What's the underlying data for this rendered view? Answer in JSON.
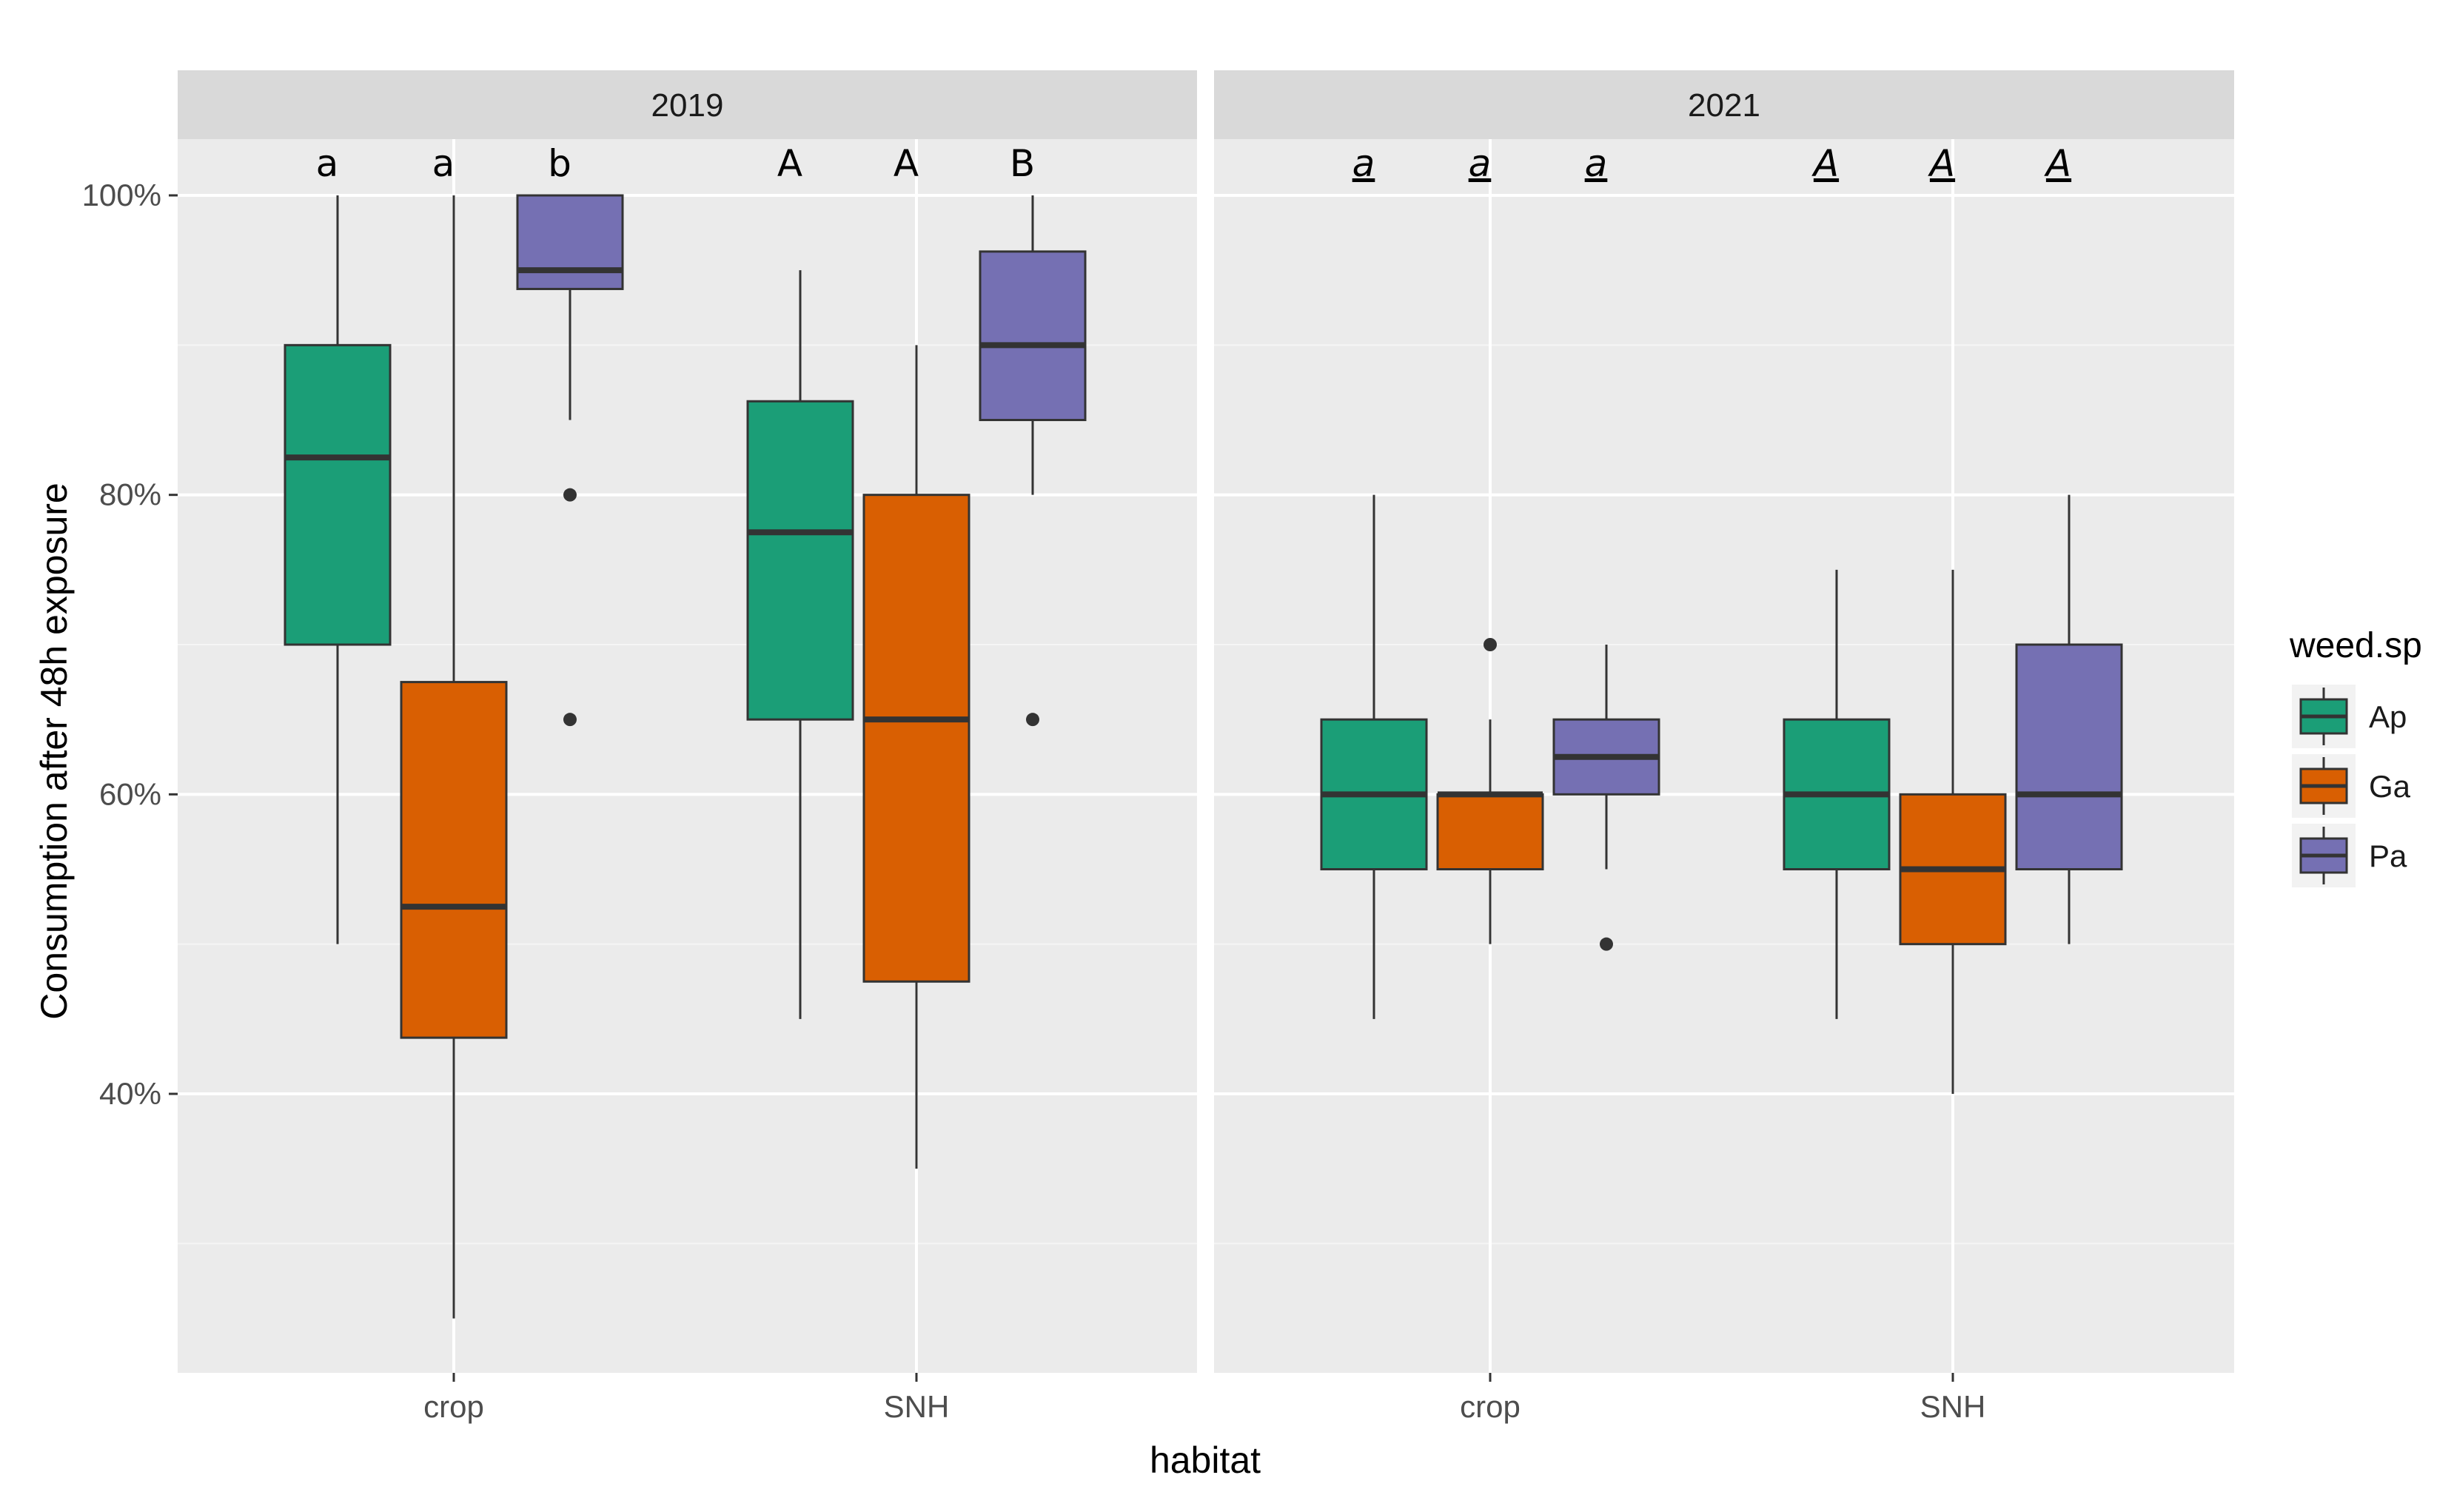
{
  "chart_data": {
    "type": "boxplot",
    "xlabel": "habitat",
    "ylabel": "Consumption after 48h exposure",
    "ylim": [
      0.23,
      1.04
    ],
    "y_ticks": [
      {
        "value": 0.4,
        "label": "40%"
      },
      {
        "value": 0.6,
        "label": "60%"
      },
      {
        "value": 0.8,
        "label": "80%"
      },
      {
        "value": 1.0,
        "label": "100%"
      }
    ],
    "y_minor_gridlines": [
      0.3,
      0.5,
      0.7,
      0.9
    ],
    "categories": [
      "crop",
      "SNH"
    ],
    "legend": {
      "title": "weed.sp",
      "position": "right",
      "entries": [
        {
          "name": "Ap",
          "color": "#1b9e77"
        },
        {
          "name": "Ga",
          "color": "#d95f02"
        },
        {
          "name": "Pa",
          "color": "#7570b3"
        }
      ]
    },
    "panels": [
      {
        "title": "2019",
        "letter_style": "plain",
        "groups": [
          {
            "habitat": "crop",
            "boxes": [
              {
                "series": "Ap",
                "min": 0.5,
                "q1": 0.7,
                "median": 0.825,
                "q3": 0.9,
                "max": 1.0,
                "outliers": [],
                "letter": "a"
              },
              {
                "series": "Ga",
                "min": 0.25,
                "q1": 0.4375,
                "median": 0.525,
                "q3": 0.675,
                "max": 1.0,
                "outliers": [],
                "letter": "a"
              },
              {
                "series": "Pa",
                "min": 0.85,
                "q1": 0.9375,
                "median": 0.95,
                "q3": 1.0,
                "max": 1.0,
                "outliers": [
                  0.8,
                  0.65
                ],
                "letter": "b"
              }
            ]
          },
          {
            "habitat": "SNH",
            "boxes": [
              {
                "series": "Ap",
                "min": 0.45,
                "q1": 0.65,
                "median": 0.775,
                "q3": 0.8625,
                "max": 0.95,
                "outliers": [],
                "letter": "A"
              },
              {
                "series": "Ga",
                "min": 0.35,
                "q1": 0.475,
                "median": 0.65,
                "q3": 0.8,
                "max": 0.9,
                "outliers": [],
                "letter": "A"
              },
              {
                "series": "Pa",
                "min": 0.8,
                "q1": 0.85,
                "median": 0.9,
                "q3": 0.9625,
                "max": 1.0,
                "outliers": [
                  0.65
                ],
                "letter": "B"
              }
            ]
          }
        ]
      },
      {
        "title": "2021",
        "letter_style": "italic-underlined",
        "groups": [
          {
            "habitat": "crop",
            "boxes": [
              {
                "series": "Ap",
                "min": 0.45,
                "q1": 0.55,
                "median": 0.6,
                "q3": 0.65,
                "max": 0.8,
                "outliers": [],
                "letter": "a"
              },
              {
                "series": "Ga",
                "min": 0.5,
                "q1": 0.55,
                "median": 0.6,
                "q3": 0.6,
                "max": 0.65,
                "outliers": [
                  0.7
                ],
                "letter": "a"
              },
              {
                "series": "Pa",
                "min": 0.55,
                "q1": 0.6,
                "median": 0.625,
                "q3": 0.65,
                "max": 0.7,
                "outliers": [
                  0.5
                ],
                "letter": "a"
              }
            ]
          },
          {
            "habitat": "SNH",
            "boxes": [
              {
                "series": "Ap",
                "min": 0.45,
                "q1": 0.55,
                "median": 0.6,
                "q3": 0.65,
                "max": 0.75,
                "outliers": [],
                "letter": "A"
              },
              {
                "series": "Ga",
                "min": 0.4,
                "q1": 0.5,
                "median": 0.55,
                "q3": 0.6,
                "max": 0.75,
                "outliers": [],
                "letter": "A"
              },
              {
                "series": "Pa",
                "min": 0.5,
                "q1": 0.55,
                "median": 0.6,
                "q3": 0.7,
                "max": 0.8,
                "outliers": [],
                "letter": "A"
              }
            ]
          }
        ]
      }
    ]
  }
}
